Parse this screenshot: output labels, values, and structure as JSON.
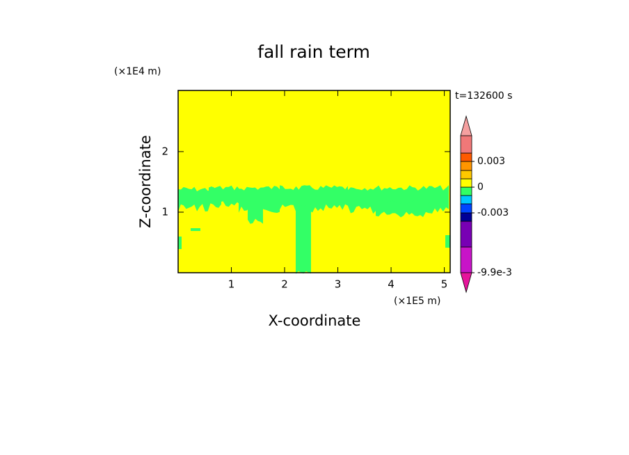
{
  "chart_data": {
    "type": "contour",
    "title": "fall rain term",
    "x_label": "X-coordinate",
    "y_label": "Z-coordinate",
    "x_unit": "(×1E5 m)",
    "y_unit": "(×1E4 m)",
    "time_label": "t=132600 s",
    "xlim": [
      0,
      5.11
    ],
    "ylim": [
      0,
      3.01
    ],
    "xticks": [
      1,
      2,
      3,
      4,
      5
    ],
    "yticks": [
      1,
      2
    ],
    "background_color": "#ffff00",
    "field_color": "#33ff66",
    "colorbar": {
      "bounds": [
        -0.0099,
        -0.007,
        -0.004,
        -0.003,
        -0.002,
        -0.001,
        0,
        0.001,
        0.002,
        0.003,
        0.004,
        0.006
      ],
      "colors": [
        "#c814c8",
        "#7800b4",
        "#000096",
        "#0046ff",
        "#00c8ff",
        "#32ff64",
        "#ffff00",
        "#ffc800",
        "#ff9600",
        "#ff5a00",
        "#f07878"
      ],
      "under_color": "#e6149b",
      "over_color": "#f5a0a0",
      "ticks": [
        {
          "value": -0.0099,
          "label": "-9.9e-3"
        },
        {
          "value": -0.003,
          "label": "-0.003"
        },
        0,
        0.003
      ]
    }
  }
}
